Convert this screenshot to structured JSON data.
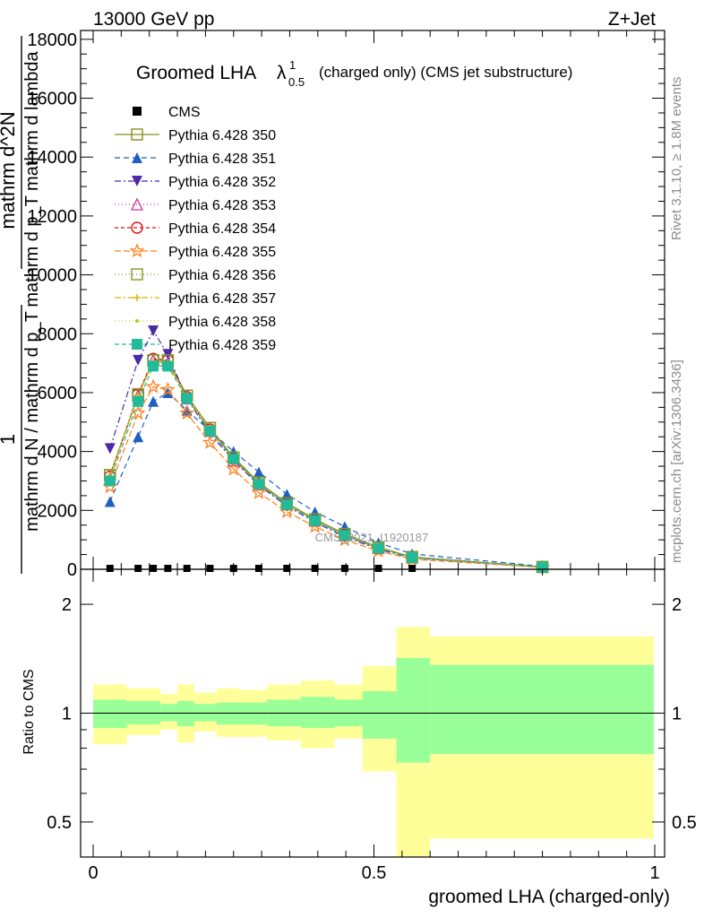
{
  "header": {
    "energy": "13000 GeV pp",
    "process": "Z+Jet"
  },
  "side_labels": {
    "rivet": "Rivet 3.1.10, ≥ 1.8M events",
    "mcplots": "mcplots.cern.ch [arXiv:1306.3436]"
  },
  "main": {
    "title": "Groomed LHA",
    "title_symbol": "λ",
    "title_sup": "1",
    "title_sub": "0.5",
    "title_suffix": "(charged only) (CMS jet substructure)",
    "watermark": "CMS_2021_I1920187",
    "ylabel_num": "mathrm d^2N",
    "ylabel_den_top": "mathrm d p_T mathrm d lambda",
    "ylabel_frac_num": "1",
    "ylabel_frac_den": "mathrm d N / mathrm d p_T",
    "yticks": [
      "0",
      "2000",
      "4000",
      "6000",
      "8000",
      "10000",
      "12000",
      "14000",
      "16000",
      "18000"
    ]
  },
  "ratio": {
    "ylabel": "Ratio to CMS",
    "yticks_left": [
      "0.5",
      "1",
      "2"
    ],
    "yticks_right": [
      "0.5",
      "1",
      "2"
    ]
  },
  "xaxis": {
    "label": "groomed LHA (charged-only)",
    "ticks": [
      "0",
      "0.5",
      "1"
    ]
  },
  "colors": {
    "band_inner": "#99ff99",
    "band_outer": "#ffff99"
  },
  "chart_data": {
    "type": "line",
    "x": [
      0.03,
      0.08,
      0.107,
      0.133,
      0.167,
      0.208,
      0.25,
      0.295,
      0.345,
      0.395,
      0.448,
      0.508,
      0.568,
      0.8
    ],
    "xlim": [
      -0.02,
      1.01
    ],
    "ylim": [
      0,
      18300
    ],
    "data": {
      "name": "CMS",
      "x": [
        0.03,
        0.08,
        0.107,
        0.133,
        0.167,
        0.208,
        0.25,
        0.295,
        0.345,
        0.395,
        0.448,
        0.508,
        0.568
      ],
      "y": [
        30,
        30,
        30,
        30,
        30,
        30,
        30,
        30,
        30,
        30,
        30,
        30,
        30
      ]
    },
    "series": [
      {
        "name": "Pythia 6.428 350",
        "color": "#8b8b22",
        "marker": "square-open",
        "dash": "",
        "values": [
          3200,
          5900,
          7100,
          7100,
          5900,
          4800,
          3800,
          2950,
          2250,
          1700,
          1200,
          750,
          420,
          80
        ]
      },
      {
        "name": "Pythia 6.428 351",
        "color": "#1f5fbf",
        "marker": "triangle-up",
        "dash": "6,4",
        "values": [
          2300,
          4500,
          5700,
          6000,
          5400,
          4700,
          4000,
          3300,
          2550,
          1950,
          1450,
          900,
          520,
          100
        ]
      },
      {
        "name": "Pythia 6.428 352",
        "color": "#4b2aa8",
        "marker": "triangle-down",
        "dash": "7,3,2,3",
        "values": [
          4100,
          7100,
          8100,
          7300,
          5800,
          4600,
          3700,
          2850,
          2150,
          1600,
          1100,
          680,
          380,
          70
        ]
      },
      {
        "name": "Pythia 6.428 353",
        "color": "#cc3399",
        "marker": "triangle-open",
        "dash": "1,3",
        "values": [
          3100,
          5900,
          7100,
          7000,
          5800,
          4700,
          3700,
          2900,
          2200,
          1650,
          1150,
          720,
          400,
          75
        ]
      },
      {
        "name": "Pythia 6.428 354",
        "color": "#dd1111",
        "marker": "circle-open",
        "dash": "4,3",
        "values": [
          3150,
          5950,
          7150,
          7100,
          5850,
          4750,
          3750,
          2900,
          2200,
          1650,
          1150,
          720,
          400,
          75
        ]
      },
      {
        "name": "Pythia 6.428 355",
        "color": "#ff7f1a",
        "marker": "star-open",
        "dash": "7,3",
        "values": [
          2800,
          5300,
          6200,
          6100,
          5300,
          4300,
          3400,
          2600,
          1950,
          1450,
          1000,
          620,
          340,
          60
        ]
      },
      {
        "name": "Pythia 6.428 356",
        "color": "#7f9a22",
        "marker": "square-open",
        "dash": "1,3",
        "values": [
          3200,
          5950,
          7100,
          7100,
          5900,
          4800,
          3800,
          2950,
          2250,
          1700,
          1200,
          740,
          410,
          80
        ]
      },
      {
        "name": "Pythia 6.428 357",
        "color": "#d4b200",
        "marker": "plus",
        "dash": "7,3,2,3",
        "values": [
          3150,
          5900,
          7050,
          7000,
          5850,
          4750,
          3750,
          2900,
          2200,
          1650,
          1150,
          720,
          400,
          75
        ]
      },
      {
        "name": "Pythia 6.428 358",
        "color": "#b5cc1a",
        "marker": "dot",
        "dash": "1,3",
        "values": [
          3150,
          5900,
          7050,
          7000,
          5850,
          4750,
          3750,
          2900,
          2200,
          1650,
          1150,
          720,
          400,
          75
        ]
      },
      {
        "name": "Pythia 6.428 359",
        "color": "#22bb99",
        "marker": "square",
        "dash": "5,3",
        "values": [
          3000,
          5700,
          6900,
          6900,
          5800,
          4700,
          3750,
          2900,
          2200,
          1650,
          1150,
          720,
          400,
          75
        ]
      }
    ],
    "ratio_bands": {
      "edges": [
        0.0,
        0.06,
        0.12,
        0.15,
        0.18,
        0.22,
        0.26,
        0.31,
        0.37,
        0.43,
        0.48,
        0.54,
        0.6,
        1.0
      ],
      "inner_lo": [
        0.91,
        0.93,
        0.95,
        0.92,
        0.95,
        0.93,
        0.93,
        0.92,
        0.91,
        0.92,
        0.85,
        0.73,
        0.77
      ],
      "inner_hi": [
        1.09,
        1.08,
        1.06,
        1.08,
        1.06,
        1.07,
        1.07,
        1.09,
        1.11,
        1.09,
        1.15,
        1.42,
        1.36
      ],
      "outer_lo": [
        0.82,
        0.87,
        0.9,
        0.83,
        0.89,
        0.86,
        0.86,
        0.84,
        0.8,
        0.85,
        0.69,
        0.37,
        0.45
      ],
      "outer_hi": [
        1.2,
        1.17,
        1.13,
        1.2,
        1.14,
        1.17,
        1.16,
        1.2,
        1.23,
        1.2,
        1.35,
        1.73,
        1.63
      ]
    },
    "ratio_ylim": [
      0.4,
      2.5
    ],
    "ratio_log": true
  }
}
